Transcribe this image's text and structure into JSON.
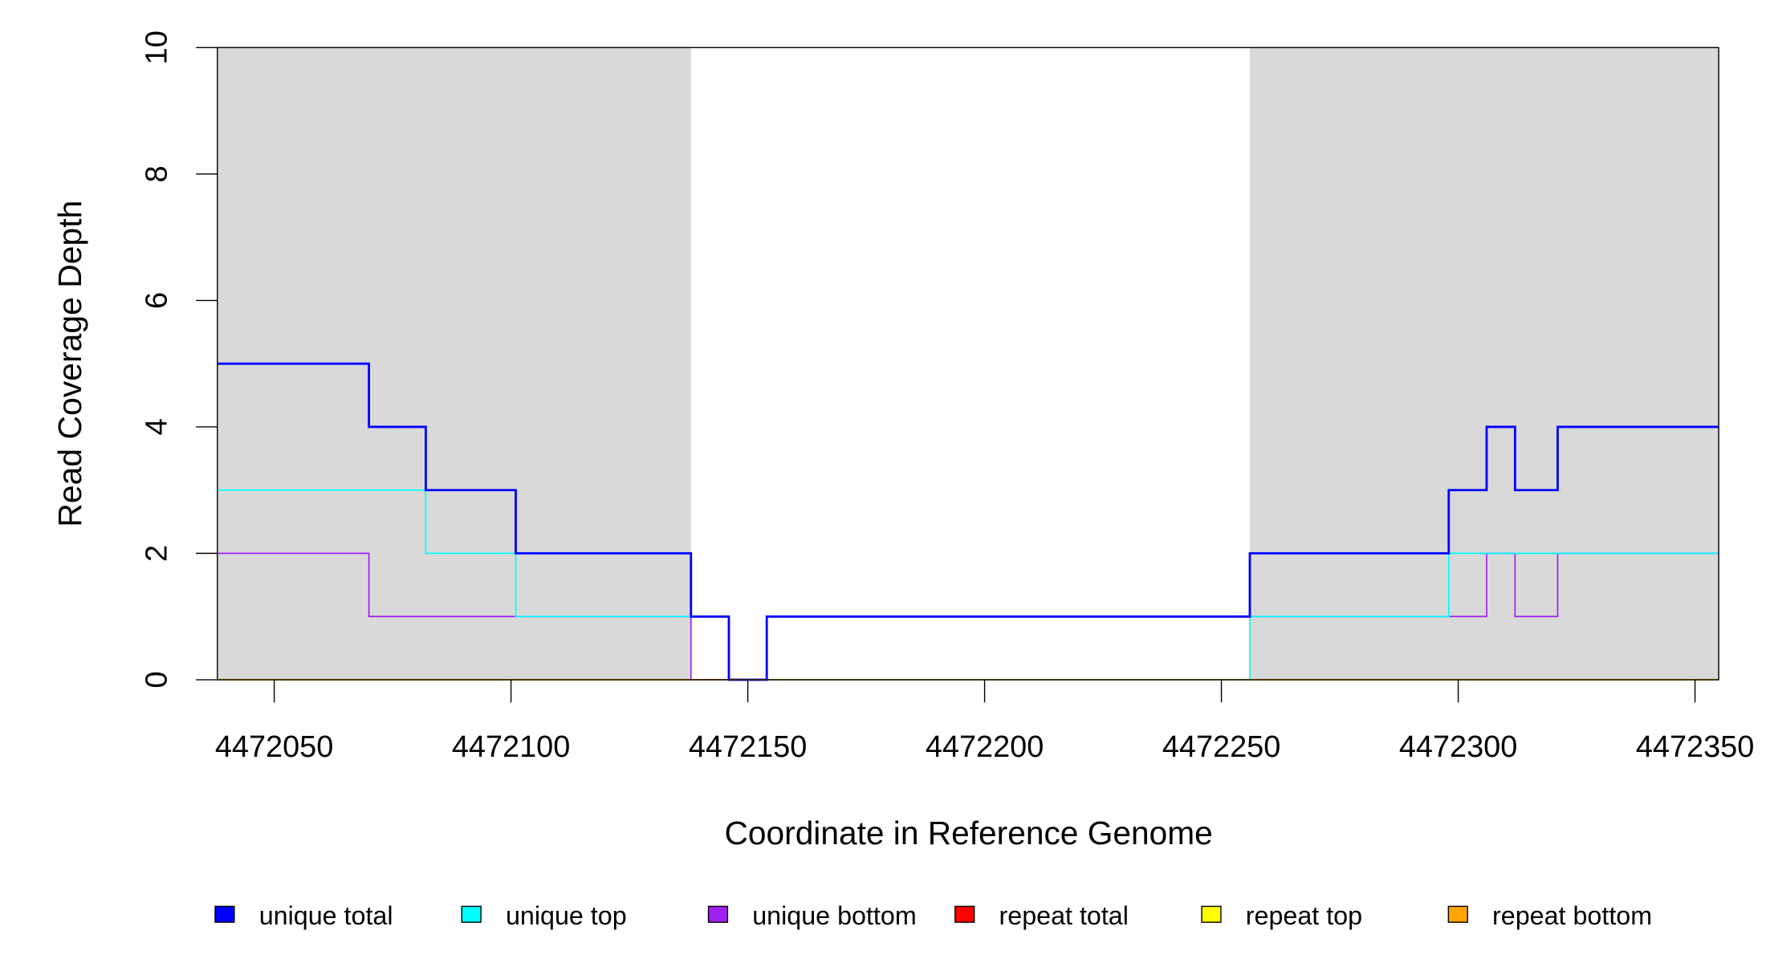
{
  "chart_data": {
    "type": "line",
    "step": true,
    "xlabel": "Coordinate in Reference Genome",
    "ylabel": "Read Coverage Depth",
    "xlim": [
      4472038,
      4472355
    ],
    "ylim": [
      0,
      10
    ],
    "x_ticks": [
      4472050,
      4472100,
      4472150,
      4472200,
      4472250,
      4472300,
      4472350
    ],
    "x_tick_labels": [
      "4472050",
      "4472100",
      "4472150",
      "4472200",
      "4472250",
      "4472300",
      "4472350"
    ],
    "y_ticks": [
      0,
      2,
      4,
      6,
      8,
      10
    ],
    "y_tick_labels": [
      "0",
      "2",
      "4",
      "6",
      "8",
      "10"
    ],
    "shaded_regions": [
      {
        "start": 4472038,
        "end": 4472138,
        "color": "#d9d9d9"
      },
      {
        "start": 4472256,
        "end": 4472355,
        "color": "#d9d9d9"
      }
    ],
    "series": [
      {
        "name": "repeat total",
        "color": "#ff0000",
        "steps": [
          [
            4472038,
            0
          ],
          [
            4472355,
            0
          ]
        ]
      },
      {
        "name": "repeat top",
        "color": "#ffff00",
        "steps": [
          [
            4472038,
            0
          ],
          [
            4472355,
            0
          ]
        ]
      },
      {
        "name": "unique bottom",
        "color": "#a020f0",
        "steps": [
          [
            4472038,
            2
          ],
          [
            4472070,
            1
          ],
          [
            4472138,
            0
          ],
          [
            4472154,
            1
          ],
          [
            4472306,
            2
          ],
          [
            4472312,
            1
          ],
          [
            4472321,
            2
          ],
          [
            4472355,
            2
          ]
        ]
      },
      {
        "name": "unique top",
        "color": "#00ffff",
        "steps": [
          [
            4472038,
            3
          ],
          [
            4472082,
            2
          ],
          [
            4472101,
            1
          ],
          [
            4472146,
            0
          ],
          [
            4472256,
            1
          ],
          [
            4472298,
            2
          ],
          [
            4472355,
            2
          ]
        ]
      },
      {
        "name": "unique total",
        "color": "#0000ff",
        "steps": [
          [
            4472038,
            5
          ],
          [
            4472070,
            4
          ],
          [
            4472082,
            3
          ],
          [
            4472101,
            2
          ],
          [
            4472138,
            1
          ],
          [
            4472146,
            0
          ],
          [
            4472154,
            1
          ],
          [
            4472256,
            2
          ],
          [
            4472298,
            3
          ],
          [
            4472306,
            4
          ],
          [
            4472312,
            3
          ],
          [
            4472321,
            4
          ],
          [
            4472355,
            4
          ]
        ]
      },
      {
        "name": "repeat bottom",
        "color": "#ffa500",
        "steps": [
          [
            4472038,
            0
          ],
          [
            4472355,
            0
          ]
        ]
      }
    ],
    "legend": {
      "placement": "bottom",
      "entries": [
        {
          "label": "unique total",
          "color": "#0000ff"
        },
        {
          "label": "unique top",
          "color": "#00ffff"
        },
        {
          "label": "unique bottom",
          "color": "#a020f0"
        },
        {
          "label": "repeat total",
          "color": "#ff0000"
        },
        {
          "label": "repeat top",
          "color": "#ffff00"
        },
        {
          "label": "repeat bottom",
          "color": "#ffa500"
        }
      ]
    }
  }
}
